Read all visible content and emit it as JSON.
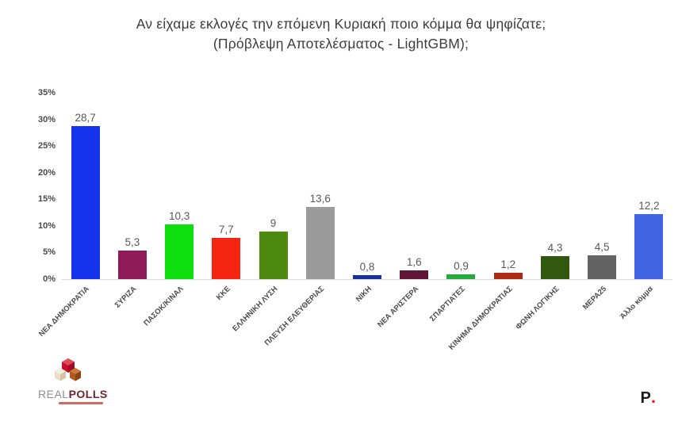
{
  "title": {
    "line1": "Αν είχαμε εκλογές την επόμενη Κυριακή ποιο κόμμα θα ψηφίζατε;",
    "line2": "(Πρόβλεψη Αποτελέσματος - LightGBM);"
  },
  "chart_data": {
    "type": "bar",
    "title": "Αν είχαμε εκλογές την επόμενη Κυριακή ποιο κόμμα θα ψηφίζατε; (Πρόβλεψη Αποτελέσματος - LightGBM);",
    "categories": [
      "ΝΕΑ ΔΗΜΟΚΡΑΤΙΑ",
      "ΣΥΡΙΖΑ",
      "ΠΑΣΟΚ/ΚΙΝΑΛ",
      "ΚΚΕ",
      "ΕΛΛΗΝΙΚΗ ΛΥΣΗ",
      "ΠΛΕΥΣΗ ΕΛΕΥΘΕΡΙΑΣ",
      "ΝΙΚΗ",
      "ΝΕΑ ΑΡΙΣΤΕΡΑ",
      "ΣΠΑΡΤΙΑΤΕΣ",
      "ΚΙΝΗΜΑ ΔΗΜΟΚΡΑΤΙΑΣ",
      "ΦΩΝΗ ΛΟΓΙΚΗΣ",
      "ΜΕΡΑ25",
      "Άλλο κόμμα"
    ],
    "values": [
      28.7,
      5.3,
      10.3,
      7.7,
      9,
      13.6,
      0.8,
      1.6,
      0.9,
      1.2,
      4.3,
      4.5,
      12.2
    ],
    "value_labels": [
      "28,7",
      "5,3",
      "10,3",
      "7,7",
      "9",
      "13,6",
      "0,8",
      "1,6",
      "0,9",
      "1,2",
      "4,3",
      "4,5",
      "12,2"
    ],
    "bar_colors": [
      "#1634ee",
      "#8e1a5a",
      "#0cdf0c",
      "#f52511",
      "#4e8a10",
      "#9b9b9b",
      "#1731a0",
      "#5f1535",
      "#25a83c",
      "#ad2a17",
      "#30590f",
      "#636363",
      "#4064e4"
    ],
    "xlabel": "",
    "ylabel": "",
    "y_ticks": [
      "0%",
      "5%",
      "10%",
      "15%",
      "20%",
      "25%",
      "30%",
      "35%"
    ],
    "y_tick_values": [
      0,
      5,
      10,
      15,
      20,
      25,
      30,
      35
    ],
    "ylim": [
      0,
      35
    ],
    "grid": false,
    "legend": false,
    "baseline_color": "#d9d9d9",
    "value_label_color": "#595959"
  },
  "footer": {
    "realpolls_real": "REAL",
    "realpolls_polls": "POLLS",
    "pollfish_p": "P",
    "pollfish_dot": "."
  }
}
